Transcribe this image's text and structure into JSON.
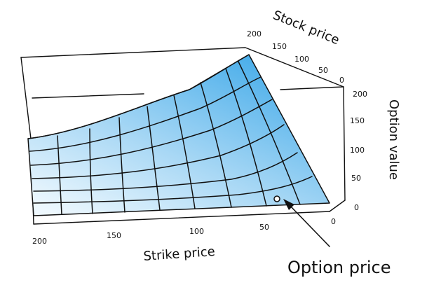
{
  "diagram": {
    "stock_axis": {
      "title": "Stock price",
      "ticks": [
        "200",
        "150",
        "100",
        "50",
        "0"
      ]
    },
    "value_axis": {
      "title": "Option value",
      "ticks": [
        "200",
        "150",
        "100",
        "50",
        "0"
      ]
    },
    "strike_axis": {
      "title": "Strike price",
      "ticks": [
        "200",
        "150",
        "100",
        "50",
        "0"
      ]
    },
    "annotation": {
      "label": "Option price"
    },
    "colors": {
      "surface_top": "#4aaeea",
      "surface_bottom": "#eaf6fd",
      "line": "#111111"
    }
  }
}
